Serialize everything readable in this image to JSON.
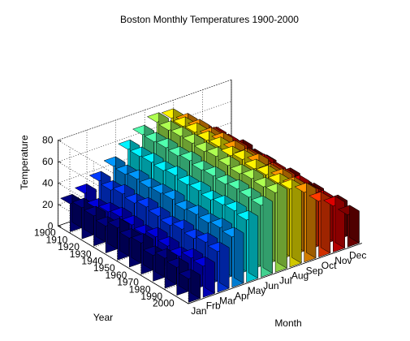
{
  "chart_data": {
    "type": "bar3d",
    "title": "Boston Monthly Temperatures 1900-2000",
    "xlabel": "Month",
    "ylabel": "Year",
    "zlabel": "Temperature",
    "categories": [
      "Jan",
      "Frb",
      "Mar",
      "Apr",
      "May",
      "Jun",
      "Jul",
      "Aug",
      "Sep",
      "Oct",
      "Nov",
      "Dec"
    ],
    "years": [
      1900,
      1910,
      1920,
      1930,
      1940,
      1950,
      1960,
      1970,
      1980,
      1990,
      2000
    ],
    "zticks": [
      0,
      20,
      40,
      60,
      80
    ],
    "zlim": [
      0,
      80
    ],
    "grid": true,
    "colormap": "jet (color by month)",
    "values": [
      [
        26,
        31,
        38,
        47,
        58,
        67,
        74,
        73,
        64,
        52,
        42,
        29
      ],
      [
        29,
        24,
        36,
        46,
        58,
        67,
        73,
        72,
        65,
        53,
        42,
        32
      ],
      [
        28,
        27,
        39,
        48,
        59,
        68,
        74,
        73,
        64,
        51,
        40,
        30
      ],
      [
        25,
        29,
        37,
        47,
        58,
        67,
        74,
        72,
        66,
        54,
        41,
        31
      ],
      [
        30,
        28,
        40,
        48,
        60,
        69,
        73,
        73,
        65,
        53,
        43,
        28
      ],
      [
        27,
        26,
        38,
        49,
        58,
        67,
        75,
        71,
        64,
        52,
        42,
        32
      ],
      [
        29,
        30,
        36,
        46,
        59,
        68,
        73,
        74,
        66,
        53,
        40,
        30
      ],
      [
        24,
        28,
        39,
        48,
        57,
        67,
        72,
        72,
        63,
        54,
        43,
        31
      ],
      [
        28,
        25,
        37,
        47,
        59,
        69,
        74,
        73,
        65,
        51,
        41,
        29
      ],
      [
        26,
        30,
        40,
        49,
        60,
        68,
        73,
        72,
        64,
        53,
        42,
        33
      ],
      [
        22,
        29,
        38,
        47,
        58,
        67,
        74,
        73,
        65,
        52,
        43,
        30
      ]
    ]
  }
}
